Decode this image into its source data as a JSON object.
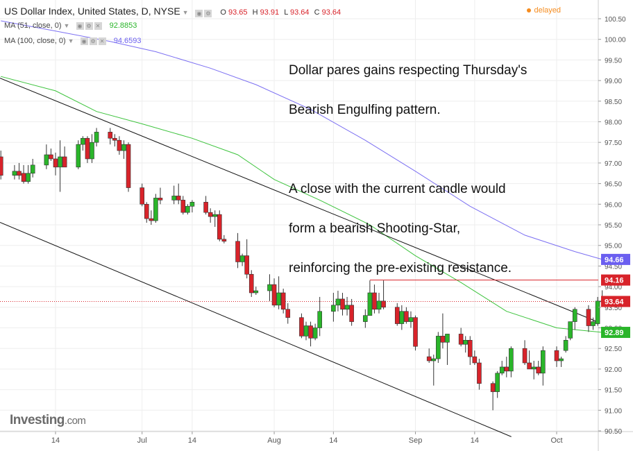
{
  "header": {
    "title": "US Dollar Index, United States, D, NYSE",
    "ohlc": [
      {
        "k": "O",
        "v": "93.65"
      },
      {
        "k": "H",
        "v": "93.91"
      },
      {
        "k": "L",
        "v": "93.64"
      },
      {
        "k": "C",
        "v": "93.64"
      }
    ],
    "status": "delayed"
  },
  "indicators": {
    "ma51": {
      "label": "MA (51, close, 0)",
      "value": "92.8853",
      "color": "#3cc33c"
    },
    "ma100": {
      "label": "MA (100, close, 0)",
      "value": "94.6593",
      "color": "#7b6ff2"
    }
  },
  "annotation": {
    "line1": "Dollar pares gains respecting Thursday's",
    "line2": "Bearish Engulfing pattern.",
    "line3": "A close with the current candle would",
    "line4": "form a bearish Shooting-Star,",
    "line5": "reinforcing the pre-existing resistance."
  },
  "branding": {
    "logo": "Investing",
    "logo_suffix": ".com"
  },
  "chart_data": {
    "type": "candlestick",
    "y_range": [
      90.5,
      100.6
    ],
    "y_ticks": [
      "100.50",
      "100.00",
      "99.50",
      "99.00",
      "98.50",
      "98.00",
      "97.50",
      "97.00",
      "96.50",
      "96.00",
      "95.50",
      "95.00",
      "94.50",
      "94.00",
      "93.50",
      "93.00",
      "92.50",
      "92.00",
      "91.50",
      "91.00",
      "90.50"
    ],
    "x_tick_labels": [
      {
        "label": "14",
        "date": "2017-06-14"
      },
      {
        "label": "Jul",
        "date": "2017-07-03"
      },
      {
        "label": "14",
        "date": "2017-07-14"
      },
      {
        "label": "Aug",
        "date": "2017-08-01"
      },
      {
        "label": "14",
        "date": "2017-08-14"
      },
      {
        "label": "Sep",
        "date": "2017-09-01"
      },
      {
        "label": "14",
        "date": "2017-09-14"
      },
      {
        "label": "Oct",
        "date": "2017-10-02"
      }
    ],
    "price_badges": [
      {
        "label": "94.66",
        "value": 94.66,
        "color": "#6b5ff0"
      },
      {
        "label": "94.16",
        "value": 94.16,
        "color": "#d8232a"
      },
      {
        "label": "93.64",
        "value": 93.64,
        "color": "#d8232a"
      },
      {
        "label": "92.89",
        "value": 92.89,
        "color": "#2ab52a"
      }
    ],
    "colors": {
      "up": "#2ab52a",
      "down": "#d8232a",
      "wick": "#333333",
      "ma51": "#3cc33c",
      "ma100": "#7b6ff2",
      "channel": "#111111",
      "resistance": "#d8232a",
      "last_price": "#d8232a"
    },
    "candles": [
      {
        "date": "2017-06-02",
        "o": 97.15,
        "h": 97.3,
        "l": 96.6,
        "c": 96.7
      },
      {
        "date": "2017-06-05",
        "o": 96.7,
        "h": 96.95,
        "l": 96.6,
        "c": 96.8
      },
      {
        "date": "2017-06-06",
        "o": 96.8,
        "h": 97.0,
        "l": 96.6,
        "c": 96.7
      },
      {
        "date": "2017-06-07",
        "o": 96.75,
        "h": 96.95,
        "l": 96.5,
        "c": 96.55
      },
      {
        "date": "2017-06-08",
        "o": 96.55,
        "h": 96.95,
        "l": 96.5,
        "c": 96.75
      },
      {
        "date": "2017-06-09",
        "o": 96.75,
        "h": 97.1,
        "l": 96.65,
        "c": 96.95
      },
      {
        "date": "2017-06-12",
        "o": 96.95,
        "h": 97.45,
        "l": 96.85,
        "c": 97.2
      },
      {
        "date": "2017-06-13",
        "o": 97.2,
        "h": 97.35,
        "l": 97.05,
        "c": 97.1
      },
      {
        "date": "2017-06-14",
        "o": 97.1,
        "h": 97.25,
        "l": 96.7,
        "c": 96.9
      },
      {
        "date": "2017-06-15",
        "o": 96.9,
        "h": 97.55,
        "l": 96.3,
        "c": 97.15
      },
      {
        "date": "2017-06-16",
        "o": 97.15,
        "h": 97.4,
        "l": 96.9,
        "c": 96.9
      },
      {
        "date": "2017-06-19",
        "o": 96.9,
        "h": 97.55,
        "l": 96.85,
        "c": 97.45
      },
      {
        "date": "2017-06-20",
        "o": 97.45,
        "h": 97.65,
        "l": 97.3,
        "c": 97.6
      },
      {
        "date": "2017-06-21",
        "o": 97.6,
        "h": 97.65,
        "l": 97.0,
        "c": 97.1
      },
      {
        "date": "2017-06-22",
        "o": 97.1,
        "h": 97.7,
        "l": 97.0,
        "c": 97.5
      },
      {
        "date": "2017-06-23",
        "o": 97.5,
        "h": 97.85,
        "l": 97.4,
        "c": 97.75
      },
      {
        "date": "2017-06-26",
        "o": 97.75,
        "h": 97.85,
        "l": 97.45,
        "c": 97.6
      },
      {
        "date": "2017-06-27",
        "o": 97.6,
        "h": 97.7,
        "l": 97.4,
        "c": 97.55
      },
      {
        "date": "2017-06-28",
        "o": 97.55,
        "h": 97.65,
        "l": 97.2,
        "c": 97.3
      },
      {
        "date": "2017-06-29",
        "o": 97.3,
        "h": 97.55,
        "l": 97.1,
        "c": 97.45
      },
      {
        "date": "2017-06-30",
        "o": 97.45,
        "h": 97.5,
        "l": 96.3,
        "c": 96.4
      },
      {
        "date": "2017-07-03",
        "o": 96.4,
        "h": 96.5,
        "l": 95.95,
        "c": 96.0
      },
      {
        "date": "2017-07-04",
        "o": 96.0,
        "h": 96.05,
        "l": 95.55,
        "c": 95.65
      },
      {
        "date": "2017-07-05",
        "o": 95.65,
        "h": 95.85,
        "l": 95.5,
        "c": 95.6
      },
      {
        "date": "2017-07-06",
        "o": 95.6,
        "h": 96.25,
        "l": 95.55,
        "c": 96.15
      },
      {
        "date": "2017-07-07",
        "o": 96.15,
        "h": 96.4,
        "l": 96.0,
        "c": 96.1
      },
      {
        "date": "2017-07-10",
        "o": 96.1,
        "h": 96.45,
        "l": 96.0,
        "c": 96.2
      },
      {
        "date": "2017-07-11",
        "o": 96.2,
        "h": 96.5,
        "l": 96.0,
        "c": 96.1
      },
      {
        "date": "2017-07-12",
        "o": 96.1,
        "h": 96.2,
        "l": 95.75,
        "c": 95.8
      },
      {
        "date": "2017-07-13",
        "o": 95.8,
        "h": 96.0,
        "l": 95.75,
        "c": 95.95
      },
      {
        "date": "2017-07-14",
        "o": 95.95,
        "h": 96.1,
        "l": 95.8,
        "c": 96.05
      },
      {
        "date": "2017-07-17",
        "o": 96.05,
        "h": 96.2,
        "l": 95.75,
        "c": 95.8
      },
      {
        "date": "2017-07-18",
        "o": 95.8,
        "h": 95.9,
        "l": 95.55,
        "c": 95.7
      },
      {
        "date": "2017-07-19",
        "o": 95.7,
        "h": 95.85,
        "l": 95.45,
        "c": 95.75
      },
      {
        "date": "2017-07-20",
        "o": 95.75,
        "h": 95.85,
        "l": 95.1,
        "c": 95.15
      },
      {
        "date": "2017-07-21",
        "o": 95.15,
        "h": 95.25,
        "l": 95.05,
        "c": 95.1
      },
      {
        "date": "2017-07-24",
        "o": 95.1,
        "h": 95.3,
        "l": 94.45,
        "c": 94.6
      },
      {
        "date": "2017-07-25",
        "o": 94.6,
        "h": 94.8,
        "l": 94.5,
        "c": 94.75
      },
      {
        "date": "2017-07-26",
        "o": 94.75,
        "h": 95.15,
        "l": 94.2,
        "c": 94.3
      },
      {
        "date": "2017-07-27",
        "o": 94.3,
        "h": 94.4,
        "l": 93.75,
        "c": 93.85
      },
      {
        "date": "2017-07-28",
        "o": 93.85,
        "h": 94.0,
        "l": 93.8,
        "c": 93.9
      },
      {
        "date": "2017-07-31",
        "o": 93.9,
        "h": 94.3,
        "l": 93.65,
        "c": 94.05
      },
      {
        "date": "2017-08-01",
        "o": 94.05,
        "h": 94.2,
        "l": 93.5,
        "c": 93.55
      },
      {
        "date": "2017-08-02",
        "o": 93.55,
        "h": 94.25,
        "l": 93.45,
        "c": 93.85
      },
      {
        "date": "2017-08-03",
        "o": 93.85,
        "h": 93.95,
        "l": 93.35,
        "c": 93.45
      },
      {
        "date": "2017-08-04",
        "o": 93.45,
        "h": 93.6,
        "l": 93.1,
        "c": 93.25
      },
      {
        "date": "2017-08-07",
        "o": 93.25,
        "h": 93.35,
        "l": 92.75,
        "c": 92.8
      },
      {
        "date": "2017-08-08",
        "o": 92.8,
        "h": 93.15,
        "l": 92.7,
        "c": 93.05
      },
      {
        "date": "2017-08-09",
        "o": 93.05,
        "h": 93.15,
        "l": 92.55,
        "c": 92.75
      },
      {
        "date": "2017-08-10",
        "o": 92.75,
        "h": 93.1,
        "l": 92.7,
        "c": 93.0
      },
      {
        "date": "2017-08-11",
        "o": 93.0,
        "h": 93.75,
        "l": 92.8,
        "c": 93.4
      },
      {
        "date": "2017-08-14",
        "o": 93.4,
        "h": 93.85,
        "l": 93.15,
        "c": 93.55
      },
      {
        "date": "2017-08-15",
        "o": 93.55,
        "h": 93.9,
        "l": 93.4,
        "c": 93.7
      },
      {
        "date": "2017-08-16",
        "o": 93.7,
        "h": 93.85,
        "l": 93.3,
        "c": 93.45
      },
      {
        "date": "2017-08-17",
        "o": 93.45,
        "h": 93.75,
        "l": 93.3,
        "c": 93.55
      },
      {
        "date": "2017-08-18",
        "o": 93.55,
        "h": 93.7,
        "l": 93.05,
        "c": 93.15
      },
      {
        "date": "2017-08-21",
        "o": 93.15,
        "h": 93.45,
        "l": 93.0,
        "c": 93.3
      },
      {
        "date": "2017-08-22",
        "o": 93.3,
        "h": 94.15,
        "l": 93.3,
        "c": 93.85
      },
      {
        "date": "2017-08-23",
        "o": 93.85,
        "h": 94.05,
        "l": 93.35,
        "c": 93.45
      },
      {
        "date": "2017-08-24",
        "o": 93.45,
        "h": 93.85,
        "l": 93.35,
        "c": 93.65
      },
      {
        "date": "2017-08-25",
        "o": 93.65,
        "h": 94.15,
        "l": 93.45,
        "c": 93.5
      },
      {
        "date": "2017-08-28",
        "o": 93.5,
        "h": 93.6,
        "l": 93.05,
        "c": 93.1
      },
      {
        "date": "2017-08-29",
        "o": 93.1,
        "h": 93.55,
        "l": 92.95,
        "c": 93.4
      },
      {
        "date": "2017-08-30",
        "o": 93.4,
        "h": 93.5,
        "l": 93.1,
        "c": 93.15
      },
      {
        "date": "2017-08-31",
        "o": 93.15,
        "h": 93.4,
        "l": 93.0,
        "c": 93.25
      },
      {
        "date": "2017-09-01",
        "o": 93.25,
        "h": 93.3,
        "l": 92.45,
        "c": 92.55
      },
      {
        "date": "2017-09-04",
        "o": 92.3,
        "h": 92.5,
        "l": 92.15,
        "c": 92.2
      },
      {
        "date": "2017-09-05",
        "o": 92.2,
        "h": 92.35,
        "l": 91.6,
        "c": 92.25
      },
      {
        "date": "2017-09-06",
        "o": 92.25,
        "h": 92.9,
        "l": 92.15,
        "c": 92.8
      },
      {
        "date": "2017-09-07",
        "o": 92.8,
        "h": 93.35,
        "l": 92.5,
        "c": 92.65
      },
      {
        "date": "2017-09-08",
        "o": 92.65,
        "h": 92.85,
        "l": 92.1,
        "c": 92.85
      },
      {
        "date": "2017-09-11",
        "o": 92.85,
        "h": 93.0,
        "l": 92.55,
        "c": 92.6
      },
      {
        "date": "2017-09-12",
        "o": 92.6,
        "h": 92.8,
        "l": 92.4,
        "c": 92.7
      },
      {
        "date": "2017-09-13",
        "o": 92.7,
        "h": 92.8,
        "l": 92.1,
        "c": 92.3
      },
      {
        "date": "2017-09-14",
        "o": 92.3,
        "h": 92.45,
        "l": 92.1,
        "c": 92.15
      },
      {
        "date": "2017-09-15",
        "o": 92.15,
        "h": 92.25,
        "l": 91.5,
        "c": 91.65
      },
      {
        "date": "2017-09-18",
        "o": 91.65,
        "h": 91.7,
        "l": 91.0,
        "c": 91.45
      },
      {
        "date": "2017-09-19",
        "o": 91.45,
        "h": 91.95,
        "l": 91.3,
        "c": 91.9
      },
      {
        "date": "2017-09-20",
        "o": 91.9,
        "h": 92.2,
        "l": 91.85,
        "c": 92.05
      },
      {
        "date": "2017-09-21",
        "o": 92.05,
        "h": 92.3,
        "l": 91.8,
        "c": 91.95
      },
      {
        "date": "2017-09-22",
        "o": 91.95,
        "h": 92.55,
        "l": 91.8,
        "c": 92.5
      },
      {
        "date": "2017-09-25",
        "o": 92.5,
        "h": 92.7,
        "l": 92.1,
        "c": 92.15
      },
      {
        "date": "2017-09-26",
        "o": 92.15,
        "h": 92.45,
        "l": 92.0,
        "c": 92.0
      },
      {
        "date": "2017-09-27",
        "o": 92.0,
        "h": 92.2,
        "l": 91.75,
        "c": 92.05
      },
      {
        "date": "2017-09-28",
        "o": 92.05,
        "h": 92.2,
        "l": 91.85,
        "c": 91.9
      },
      {
        "date": "2017-09-29",
        "o": 91.9,
        "h": 92.55,
        "l": 91.6,
        "c": 92.45
      },
      {
        "date": "2017-10-02",
        "o": 92.45,
        "h": 92.55,
        "l": 92.05,
        "c": 92.2
      },
      {
        "date": "2017-10-03",
        "o": 92.2,
        "h": 92.3,
        "l": 92.05,
        "c": 92.25
      },
      {
        "date": "2017-10-04",
        "o": 92.45,
        "h": 92.8,
        "l": 92.4,
        "c": 92.7
      },
      {
        "date": "2017-10-05",
        "o": 92.75,
        "h": 93.15,
        "l": 92.7,
        "c": 93.15
      },
      {
        "date": "2017-10-06",
        "o": 93.15,
        "h": 93.5,
        "l": 92.95,
        "c": 93.45
      },
      {
        "date": "2017-10-09",
        "o": 93.45,
        "h": 93.55,
        "l": 92.9,
        "c": 93.05
      },
      {
        "date": "2017-10-10",
        "o": 93.05,
        "h": 93.25,
        "l": 92.95,
        "c": 93.15
      },
      {
        "date": "2017-10-11",
        "o": 93.1,
        "h": 93.75,
        "l": 93.05,
        "c": 93.65
      },
      {
        "date": "2017-10-12",
        "o": 93.65,
        "h": 93.91,
        "l": 93.64,
        "c": 93.64
      }
    ],
    "ma51_series": [
      {
        "date": "2017-06-02",
        "v": 99.1
      },
      {
        "date": "2017-06-14",
        "v": 98.75
      },
      {
        "date": "2017-06-23",
        "v": 98.25
      },
      {
        "date": "2017-07-03",
        "v": 97.95
      },
      {
        "date": "2017-07-14",
        "v": 97.6
      },
      {
        "date": "2017-07-24",
        "v": 97.2
      },
      {
        "date": "2017-08-01",
        "v": 96.6
      },
      {
        "date": "2017-08-11",
        "v": 96.1
      },
      {
        "date": "2017-08-22",
        "v": 95.5
      },
      {
        "date": "2017-09-01",
        "v": 94.75
      },
      {
        "date": "2017-09-11",
        "v": 94.1
      },
      {
        "date": "2017-09-21",
        "v": 93.4
      },
      {
        "date": "2017-10-02",
        "v": 93.0
      },
      {
        "date": "2017-10-12",
        "v": 92.89
      }
    ],
    "ma100_series": [
      {
        "date": "2017-06-02",
        "v": 100.45
      },
      {
        "date": "2017-06-14",
        "v": 100.2
      },
      {
        "date": "2017-06-26",
        "v": 99.95
      },
      {
        "date": "2017-07-06",
        "v": 99.7
      },
      {
        "date": "2017-07-18",
        "v": 99.3
      },
      {
        "date": "2017-07-28",
        "v": 98.9
      },
      {
        "date": "2017-08-09",
        "v": 98.3
      },
      {
        "date": "2017-08-21",
        "v": 97.55
      },
      {
        "date": "2017-09-01",
        "v": 96.8
      },
      {
        "date": "2017-09-13",
        "v": 95.95
      },
      {
        "date": "2017-09-25",
        "v": 95.25
      },
      {
        "date": "2017-10-06",
        "v": 94.85
      },
      {
        "date": "2017-10-12",
        "v": 94.66
      }
    ],
    "channel_upper": [
      {
        "date": "2017-06-02",
        "v": 99.05
      },
      {
        "date": "2017-10-12",
        "v": 93.1
      }
    ],
    "channel_lower": [
      {
        "date": "2017-06-02",
        "v": 95.55
      },
      {
        "date": "2017-09-19",
        "v": 90.5
      }
    ],
    "resistance_line": {
      "from": "2017-08-22",
      "to": "2017-10-12",
      "v": 94.16
    },
    "last_price_line": {
      "v": 93.64
    }
  }
}
